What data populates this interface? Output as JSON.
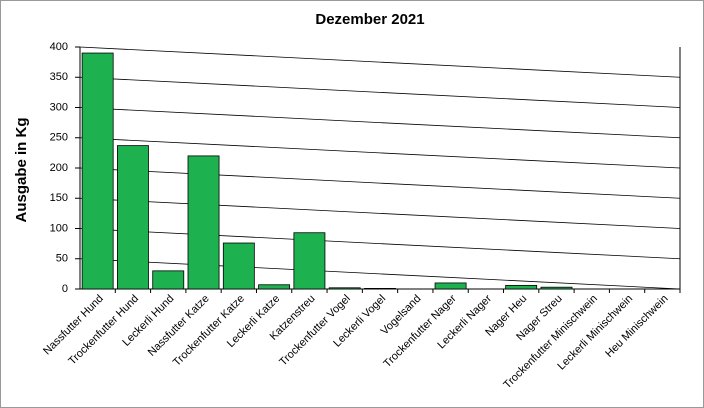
{
  "chart_data": {
    "type": "bar",
    "title": "Dezember 2021",
    "y_label": "Ausgabe in Kg",
    "categories": [
      "Nassfutter Hund",
      "Trockenfutter Hund",
      "Leckerli Hund",
      "Nassfutter Katze",
      "Trockenfutter Katze",
      "Leckerli Katze",
      "Katzenstreu",
      "Trockenfutter Vogel",
      "Leckerli Vogel",
      "Vogelsand",
      "Trockenfutter Nager",
      "Leckerli Nager",
      "Nager Heu",
      "Nager Streu",
      "Trockenfutter Minischwein",
      "Leckerli Minischwein",
      "Heu Minischwein"
    ],
    "values": [
      390,
      237,
      30,
      220,
      76,
      7,
      93,
      2,
      1,
      0,
      10,
      0,
      6,
      3,
      0,
      0,
      0
    ],
    "color": "#1db14f",
    "ylim": [
      0,
      400
    ],
    "yticks": [
      0,
      50,
      100,
      150,
      200,
      250,
      300,
      350,
      400
    ],
    "grid": true
  }
}
